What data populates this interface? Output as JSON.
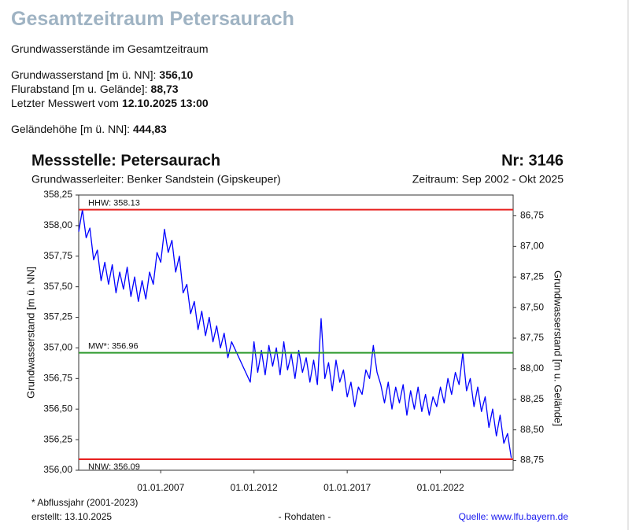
{
  "header": {
    "title": "Gesamtzeitraum Petersaurach",
    "subtitle": "Grundwasserstände im Gesamtzeitraum",
    "facts": [
      {
        "label": "Grundwasserstand [m ü. NN]:",
        "value": "356,10"
      },
      {
        "label": "Flurabstand [m u. Gelände]:",
        "value": "88,73"
      },
      {
        "label": "Letzter Messwert vom",
        "value": "12.10.2025 13:00"
      },
      {
        "label": "Geländehöhe [m ü. NN]:",
        "value": "444,83"
      }
    ]
  },
  "chart_data": {
    "type": "line",
    "title": "Messstelle: Petersaurach",
    "number": "Nr: 3146",
    "subtitle": "Grundwasserleiter:  Benker Sandstein (Gipskeuper)",
    "period": "Zeitraum: Sep 2002 - Okt 2025",
    "ylabel": "Grundwasserstand [m ü. NN]",
    "y2label": "Grundwasserstand [m u. Gelände]",
    "footnote": "* Abflussjahr (2001-2023)",
    "created": "erstellt:  13.10.2025",
    "data_note": "- Rohdaten -",
    "source": "Quelle: www.lfu.bayern.de",
    "xlim": [
      2002.6,
      2025.9
    ],
    "xticks": [
      {
        "value": 2007,
        "label": "01.01.2007"
      },
      {
        "value": 2012,
        "label": "01.01.2012"
      },
      {
        "value": 2017,
        "label": "01.01.2017"
      },
      {
        "value": 2022,
        "label": "01.01.2022"
      }
    ],
    "ylim": [
      356.0,
      358.25
    ],
    "yticks": [
      {
        "value": 356.0,
        "label": "356,00"
      },
      {
        "value": 356.25,
        "label": "356,25"
      },
      {
        "value": 356.5,
        "label": "356,50"
      },
      {
        "value": 356.75,
        "label": "356,75"
      },
      {
        "value": 357.0,
        "label": "357,00"
      },
      {
        "value": 357.25,
        "label": "357,25"
      },
      {
        "value": 357.5,
        "label": "357,50"
      },
      {
        "value": 357.75,
        "label": "357,75"
      },
      {
        "value": 358.0,
        "label": "358,00"
      },
      {
        "value": 358.25,
        "label": "358,25"
      }
    ],
    "y2lim": [
      88.83,
      86.58
    ],
    "y2ticks": [
      {
        "value": 86.75,
        "label": "86,75"
      },
      {
        "value": 87.0,
        "label": "87,00"
      },
      {
        "value": 87.25,
        "label": "87,25"
      },
      {
        "value": 87.5,
        "label": "87,50"
      },
      {
        "value": 87.75,
        "label": "87,75"
      },
      {
        "value": 88.0,
        "label": "88,00"
      },
      {
        "value": 88.25,
        "label": "88,25"
      },
      {
        "value": 88.5,
        "label": "88,50"
      },
      {
        "value": 88.75,
        "label": "88,75"
      }
    ],
    "hlines": [
      {
        "label": "HHW: 358.13",
        "value": 358.13,
        "color": "#e8201f"
      },
      {
        "label": "MW*: 356.96",
        "value": 356.96,
        "color": "#2e9a2e"
      },
      {
        "label": "NNW: 356.09",
        "value": 356.09,
        "color": "#e8201f"
      }
    ],
    "x": [
      2002.6,
      2002.8,
      2003.0,
      2003.2,
      2003.4,
      2003.6,
      2003.8,
      2004.0,
      2004.2,
      2004.4,
      2004.6,
      2004.8,
      2005.0,
      2005.2,
      2005.4,
      2005.6,
      2005.8,
      2006.0,
      2006.2,
      2006.4,
      2006.6,
      2006.8,
      2007.0,
      2007.2,
      2007.4,
      2007.6,
      2007.8,
      2008.0,
      2008.2,
      2008.4,
      2008.6,
      2008.8,
      2009.0,
      2009.2,
      2009.4,
      2009.6,
      2009.8,
      2010.0,
      2010.2,
      2010.4,
      2010.6,
      2010.8,
      2011.8,
      2012.0,
      2012.2,
      2012.4,
      2012.6,
      2012.8,
      2013.0,
      2013.2,
      2013.4,
      2013.6,
      2013.8,
      2014.0,
      2014.2,
      2014.4,
      2014.6,
      2014.8,
      2015.0,
      2015.2,
      2015.4,
      2015.6,
      2015.8,
      2016.0,
      2016.2,
      2016.4,
      2016.6,
      2016.8,
      2017.0,
      2017.2,
      2017.4,
      2017.6,
      2017.8,
      2018.0,
      2018.2,
      2018.4,
      2018.6,
      2018.8,
      2019.0,
      2019.2,
      2019.4,
      2019.6,
      2019.8,
      2020.0,
      2020.2,
      2020.4,
      2020.6,
      2020.8,
      2021.0,
      2021.2,
      2021.4,
      2021.6,
      2021.8,
      2022.0,
      2022.2,
      2022.4,
      2022.6,
      2022.8,
      2023.0,
      2023.2,
      2023.4,
      2023.6,
      2023.8,
      2024.0,
      2024.2,
      2024.4,
      2024.6,
      2024.8,
      2025.0,
      2025.2,
      2025.4,
      2025.6,
      2025.8
    ],
    "series": [
      {
        "color": "#0000ff",
        "values": [
          357.95,
          358.13,
          357.9,
          357.98,
          357.72,
          357.8,
          357.55,
          357.7,
          357.52,
          357.68,
          357.45,
          357.62,
          357.48,
          357.66,
          357.42,
          357.58,
          357.38,
          357.55,
          357.4,
          357.62,
          357.52,
          357.78,
          357.7,
          357.97,
          357.78,
          357.88,
          357.62,
          357.75,
          357.45,
          357.52,
          357.28,
          357.38,
          357.15,
          357.3,
          357.1,
          357.25,
          357.05,
          357.18,
          357.0,
          357.12,
          356.92,
          357.05,
          356.72,
          357.05,
          356.8,
          356.98,
          356.78,
          357.02,
          356.85,
          357.0,
          356.78,
          357.05,
          356.82,
          356.95,
          356.75,
          356.98,
          356.8,
          356.92,
          356.72,
          356.9,
          356.7,
          357.24,
          356.75,
          356.88,
          356.65,
          356.9,
          356.72,
          356.82,
          356.6,
          356.72,
          356.52,
          356.68,
          356.62,
          356.82,
          356.75,
          357.02,
          356.8,
          356.7,
          356.55,
          356.72,
          356.5,
          356.68,
          356.55,
          356.7,
          356.45,
          356.65,
          356.5,
          356.68,
          356.48,
          356.62,
          356.45,
          356.6,
          356.52,
          356.68,
          356.55,
          356.75,
          356.62,
          356.8,
          356.7,
          356.96,
          356.65,
          356.75,
          356.52,
          356.68,
          356.48,
          356.6,
          356.35,
          356.5,
          356.28,
          356.45,
          356.22,
          356.3,
          356.1
        ]
      }
    ]
  }
}
